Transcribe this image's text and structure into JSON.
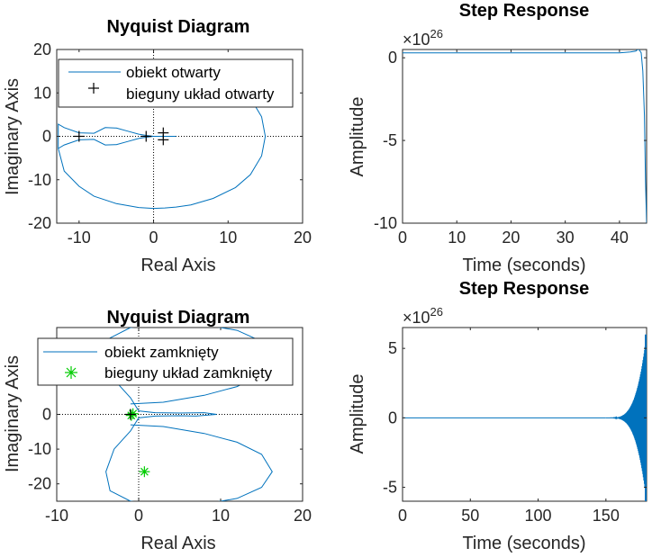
{
  "chart_data": [
    {
      "type": "line",
      "title": "Nyquist Diagram",
      "xlabel": "Real Axis",
      "ylabel": "Imaginary Axis",
      "xlim": [
        -13,
        20
      ],
      "ylim": [
        -20,
        20
      ],
      "xticks": [
        -10,
        0,
        10,
        20
      ],
      "yticks": [
        -20,
        -10,
        0,
        10,
        20
      ],
      "legend": {
        "placement": "top",
        "entries": [
          "obiekt otwarty",
          "bieguny układ otwarty"
        ]
      },
      "series": [
        {
          "name": "obiekt otwarty",
          "color": "#0072BD",
          "x": [
            -12.8,
            -12,
            -10,
            -8,
            -6.5,
            -5,
            -3.5,
            -2,
            -1,
            0,
            1,
            2,
            3,
            3,
            2,
            1,
            0,
            -1,
            -2,
            -3.5,
            -5,
            -6.5,
            -8,
            -10,
            -12,
            -12.8,
            -12.8,
            -12,
            -10,
            -8,
            -5,
            -2,
            0,
            1.5,
            3,
            5,
            8,
            11,
            13,
            14.5,
            15,
            14.5,
            13,
            11,
            8,
            4,
            0,
            -4,
            -8,
            -12.8
          ],
          "y": [
            -2.8,
            -2,
            -0.8,
            -0.7,
            -2,
            -1.9,
            -1.2,
            -0.5,
            -0.2,
            0,
            0,
            0,
            0,
            0,
            0,
            0,
            0,
            0.2,
            0.5,
            1.2,
            1.9,
            2,
            0.7,
            0.8,
            2,
            2.8,
            -2.8,
            -8,
            -11.5,
            -13.8,
            -15.5,
            -16.4,
            -16.6,
            -16.5,
            -16.3,
            -15.8,
            -14.3,
            -11.8,
            -8.8,
            -4.5,
            0,
            4.5,
            8.8,
            11.8,
            14.3,
            16.2,
            17,
            16.8,
            15.5,
            11
          ]
        },
        {
          "name": "bieguny układ otwarty",
          "color": "#000000",
          "marker": "+",
          "x": [
            -10,
            -1,
            1.3,
            1.3
          ],
          "y": [
            0,
            0,
            0.8,
            -0.8
          ]
        }
      ],
      "reference_lines": {
        "x": 0,
        "y": 0,
        "style": "dotted"
      }
    },
    {
      "type": "line",
      "title": "Step Response",
      "xlabel": "Time (seconds)",
      "ylabel": "Amplitude",
      "exponent_label": "×10",
      "exponent_power": "26",
      "xlim": [
        0,
        45
      ],
      "ylim": [
        -10,
        0.5
      ],
      "xticks": [
        0,
        10,
        20,
        30,
        40
      ],
      "yticks": [
        -10,
        -5,
        0
      ],
      "series": [
        {
          "color": "#0072BD",
          "x": [
            0,
            10,
            20,
            30,
            40,
            42,
            43,
            43.5,
            44,
            44.3,
            44.6,
            44.8,
            45
          ],
          "y": [
            0.3,
            0.3,
            0.3,
            0.3,
            0.3,
            0.35,
            0.4,
            0.55,
            0.3,
            -0.8,
            -3.5,
            -7.5,
            -10
          ]
        }
      ]
    },
    {
      "type": "line",
      "title": "Nyquist Diagram",
      "xlabel": "Real Axis",
      "ylabel": "Imaginary Axis",
      "xlim": [
        -10,
        20
      ],
      "ylim": [
        -25,
        25
      ],
      "xticks": [
        -10,
        0,
        10,
        20
      ],
      "yticks": [
        -20,
        -10,
        0
      ],
      "legend": {
        "placement": "top",
        "entries": [
          "obiekt zamknięty",
          "bieguny układ zamknięty"
        ]
      },
      "series": [
        {
          "name": "obiekt zamknięty",
          "color": "#0072BD",
          "x": [
            -1,
            3,
            8,
            12,
            15,
            16.3,
            15,
            12,
            8,
            3,
            -1,
            -3.5,
            -4,
            -3,
            -1,
            0,
            2,
            5,
            7,
            9.5,
            8,
            5,
            2,
            0,
            -1,
            -3,
            -4,
            -3.5,
            -1,
            3,
            8,
            12,
            15,
            16.3,
            15,
            12,
            8,
            3,
            -1
          ],
          "y": [
            -3,
            -3.5,
            -5.5,
            -8,
            -11.5,
            -16.5,
            -21,
            -24.2,
            -25.8,
            -26.2,
            -25,
            -22,
            -16.5,
            -10,
            -4.8,
            -1,
            -0.5,
            -0.4,
            -0.5,
            0,
            0.5,
            0.4,
            0.5,
            1,
            4.8,
            10,
            16.5,
            22,
            25,
            26.2,
            25.8,
            24.2,
            21,
            16.5,
            11.5,
            8,
            5.5,
            3.5,
            3
          ]
        },
        {
          "name": "bieguny układ zamknięty",
          "color": "#00CC00",
          "marker": "*",
          "x": [
            -0.7,
            -0.9,
            0.7
          ],
          "y": [
            0.2,
            -0.3,
            -16.5
          ]
        },
        {
          "color": "#000000",
          "marker": "+",
          "x": [
            -1
          ],
          "y": [
            0
          ]
        }
      ],
      "reference_lines": {
        "x": 0,
        "y": 0,
        "style": "dotted"
      }
    },
    {
      "type": "line",
      "title": "Step Response",
      "xlabel": "Time (seconds)",
      "ylabel": "Amplitude",
      "exponent_label": "×10",
      "exponent_power": "26",
      "xlim": [
        0,
        180
      ],
      "ylim": [
        -6,
        6.5
      ],
      "xticks": [
        0,
        50,
        100,
        150
      ],
      "yticks": [
        -5,
        0,
        5
      ],
      "series": [
        {
          "color": "#0072BD",
          "x": [
            0,
            150
          ],
          "y": [
            0,
            0
          ],
          "oscillation_from": 150,
          "envelope_end": 6
        }
      ]
    }
  ]
}
